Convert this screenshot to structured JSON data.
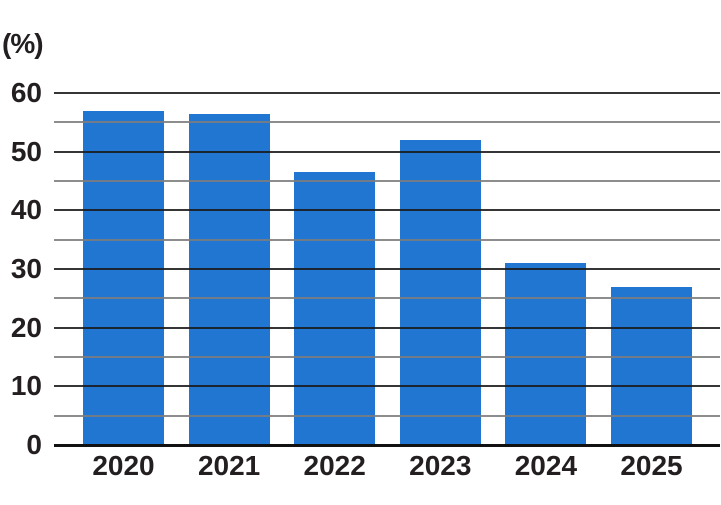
{
  "chart_data": {
    "type": "bar",
    "title": "",
    "unit_label": "(%)",
    "categories": [
      "2020",
      "2021",
      "2022",
      "2023",
      "2024",
      "2025"
    ],
    "values": [
      57,
      56.5,
      46.5,
      52,
      31,
      27
    ],
    "xlabel": "",
    "ylabel": "(%)",
    "ylim": [
      0,
      60
    ],
    "y_major_ticks": [
      0,
      10,
      20,
      30,
      40,
      50,
      60
    ],
    "y_minor_ticks": [
      5,
      15,
      25,
      35,
      45,
      55
    ],
    "grid": "horizontal major (dark) and minor (gray) lines drawn over bars",
    "legend_position": "none",
    "bar_color": "#2176d2",
    "major_grid_color": "#1a1a1a",
    "minor_grid_color": "#7d7d7d",
    "axis_line_color": "#111111",
    "text_color": "#231f20",
    "background_color": "#ffffff"
  }
}
